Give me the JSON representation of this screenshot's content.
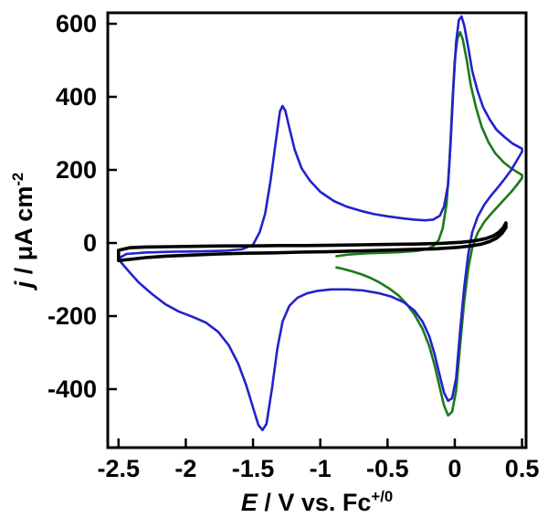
{
  "figure": {
    "background": "#ffffff",
    "xlabel": {
      "var": "E",
      "rest": " / V vs. Fc",
      "sup": "+/0"
    },
    "ylabel": {
      "var": "j",
      "rest": " / μA cm",
      "sup": "-2"
    }
  },
  "chart_data": {
    "type": "line",
    "title": "",
    "subtitle": "",
    "xlabel": "E / V vs. Fc+/0",
    "ylabel": "j / μA cm-2",
    "xlim": [
      -2.58,
      0.53
    ],
    "ylim": [
      -560,
      630
    ],
    "grid": false,
    "legend": "none",
    "frame_color": "#000000",
    "xticks": {
      "values": [
        -2.5,
        -2.0,
        -1.5,
        -1.0,
        -0.5,
        0.0,
        0.5
      ],
      "labels": [
        "-2.5",
        "-2",
        "-1.5",
        "-1",
        "-0.5",
        "0",
        "0.5"
      ]
    },
    "yticks": {
      "values": [
        -400,
        -200,
        0,
        200,
        400,
        600
      ],
      "labels": [
        "-400",
        "-200",
        "0",
        "200",
        "400",
        "600"
      ]
    },
    "series": [
      {
        "name": "green",
        "color": "#1a7a1a",
        "width": 2.6,
        "points": [
          [
            -0.88,
            -36
          ],
          [
            -0.8,
            -32
          ],
          [
            -0.72,
            -30
          ],
          [
            -0.64,
            -28
          ],
          [
            -0.56,
            -27
          ],
          [
            -0.48,
            -26
          ],
          [
            -0.4,
            -25
          ],
          [
            -0.33,
            -23
          ],
          [
            -0.27,
            -21
          ],
          [
            -0.21,
            -17
          ],
          [
            -0.16,
            -9
          ],
          [
            -0.12,
            8
          ],
          [
            -0.09,
            40
          ],
          [
            -0.06,
            110
          ],
          [
            -0.04,
            220
          ],
          [
            -0.02,
            370
          ],
          [
            0.0,
            500
          ],
          [
            0.02,
            560
          ],
          [
            0.04,
            577
          ],
          [
            0.06,
            556
          ],
          [
            0.09,
            498
          ],
          [
            0.12,
            430
          ],
          [
            0.16,
            368
          ],
          [
            0.2,
            318
          ],
          [
            0.25,
            276
          ],
          [
            0.3,
            246
          ],
          [
            0.36,
            222
          ],
          [
            0.42,
            204
          ],
          [
            0.5,
            186
          ],
          [
            0.5,
            178
          ],
          [
            0.46,
            158
          ],
          [
            0.42,
            140
          ],
          [
            0.37,
            120
          ],
          [
            0.32,
            100
          ],
          [
            0.27,
            80
          ],
          [
            0.22,
            58
          ],
          [
            0.17,
            28
          ],
          [
            0.13,
            -12
          ],
          [
            0.1,
            -70
          ],
          [
            0.07,
            -160
          ],
          [
            0.04,
            -280
          ],
          [
            0.01,
            -405
          ],
          [
            -0.02,
            -462
          ],
          [
            -0.05,
            -472
          ],
          [
            -0.08,
            -445
          ],
          [
            -0.11,
            -398
          ],
          [
            -0.15,
            -335
          ],
          [
            -0.19,
            -282
          ],
          [
            -0.24,
            -235
          ],
          [
            -0.3,
            -196
          ],
          [
            -0.36,
            -166
          ],
          [
            -0.42,
            -143
          ],
          [
            -0.49,
            -124
          ],
          [
            -0.56,
            -108
          ],
          [
            -0.63,
            -95
          ],
          [
            -0.7,
            -85
          ],
          [
            -0.77,
            -77
          ],
          [
            -0.83,
            -71
          ],
          [
            -0.88,
            -67
          ]
        ]
      },
      {
        "name": "blue",
        "color": "#2222cc",
        "width": 2.6,
        "points": [
          [
            -2.5,
            -42
          ],
          [
            -2.44,
            -30
          ],
          [
            -2.3,
            -26
          ],
          [
            -2.1,
            -24
          ],
          [
            -1.9,
            -23
          ],
          [
            -1.7,
            -21
          ],
          [
            -1.58,
            -17
          ],
          [
            -1.5,
            -5
          ],
          [
            -1.45,
            30
          ],
          [
            -1.41,
            80
          ],
          [
            -1.37,
            170
          ],
          [
            -1.33,
            280
          ],
          [
            -1.3,
            360
          ],
          [
            -1.28,
            375
          ],
          [
            -1.26,
            362
          ],
          [
            -1.23,
            315
          ],
          [
            -1.19,
            255
          ],
          [
            -1.14,
            205
          ],
          [
            -1.08,
            172
          ],
          [
            -1.0,
            140
          ],
          [
            -0.9,
            115
          ],
          [
            -0.8,
            99
          ],
          [
            -0.7,
            88
          ],
          [
            -0.6,
            79
          ],
          [
            -0.5,
            73
          ],
          [
            -0.4,
            68
          ],
          [
            -0.3,
            64
          ],
          [
            -0.22,
            62
          ],
          [
            -0.16,
            64
          ],
          [
            -0.11,
            75
          ],
          [
            -0.08,
            100
          ],
          [
            -0.05,
            160
          ],
          [
            -0.03,
            280
          ],
          [
            -0.01,
            430
          ],
          [
            0.01,
            550
          ],
          [
            0.03,
            610
          ],
          [
            0.05,
            620
          ],
          [
            0.07,
            595
          ],
          [
            0.1,
            535
          ],
          [
            0.13,
            470
          ],
          [
            0.17,
            415
          ],
          [
            0.21,
            372
          ],
          [
            0.26,
            338
          ],
          [
            0.31,
            310
          ],
          [
            0.37,
            290
          ],
          [
            0.43,
            272
          ],
          [
            0.5,
            258
          ],
          [
            0.5,
            250
          ],
          [
            0.46,
            225
          ],
          [
            0.42,
            200
          ],
          [
            0.37,
            175
          ],
          [
            0.32,
            152
          ],
          [
            0.27,
            130
          ],
          [
            0.22,
            105
          ],
          [
            0.17,
            72
          ],
          [
            0.13,
            30
          ],
          [
            0.1,
            -30
          ],
          [
            0.07,
            -120
          ],
          [
            0.04,
            -240
          ],
          [
            0.01,
            -370
          ],
          [
            -0.02,
            -425
          ],
          [
            -0.05,
            -432
          ],
          [
            -0.08,
            -410
          ],
          [
            -0.11,
            -365
          ],
          [
            -0.15,
            -305
          ],
          [
            -0.19,
            -255
          ],
          [
            -0.24,
            -215
          ],
          [
            -0.3,
            -185
          ],
          [
            -0.38,
            -162
          ],
          [
            -0.47,
            -147
          ],
          [
            -0.57,
            -137
          ],
          [
            -0.68,
            -130
          ],
          [
            -0.8,
            -127
          ],
          [
            -0.92,
            -127
          ],
          [
            -1.02,
            -131
          ],
          [
            -1.1,
            -138
          ],
          [
            -1.17,
            -150
          ],
          [
            -1.23,
            -172
          ],
          [
            -1.28,
            -215
          ],
          [
            -1.32,
            -290
          ],
          [
            -1.36,
            -400
          ],
          [
            -1.4,
            -495
          ],
          [
            -1.43,
            -512
          ],
          [
            -1.46,
            -498
          ],
          [
            -1.5,
            -450
          ],
          [
            -1.55,
            -390
          ],
          [
            -1.61,
            -330
          ],
          [
            -1.68,
            -280
          ],
          [
            -1.76,
            -243
          ],
          [
            -1.85,
            -218
          ],
          [
            -1.95,
            -202
          ],
          [
            -2.05,
            -188
          ],
          [
            -2.15,
            -168
          ],
          [
            -2.25,
            -140
          ],
          [
            -2.35,
            -108
          ],
          [
            -2.43,
            -75
          ],
          [
            -2.5,
            -45
          ]
        ]
      },
      {
        "name": "black",
        "color": "#000000",
        "width": 3.6,
        "points": [
          [
            -2.5,
            -20
          ],
          [
            -2.42,
            -13
          ],
          [
            -2.3,
            -11
          ],
          [
            -2.1,
            -10
          ],
          [
            -1.9,
            -9
          ],
          [
            -1.7,
            -8
          ],
          [
            -1.5,
            -8
          ],
          [
            -1.3,
            -7
          ],
          [
            -1.1,
            -7
          ],
          [
            -0.9,
            -6
          ],
          [
            -0.7,
            -5
          ],
          [
            -0.5,
            -4
          ],
          [
            -0.3,
            -3
          ],
          [
            -0.1,
            -1
          ],
          [
            0.05,
            2
          ],
          [
            0.15,
            6
          ],
          [
            0.23,
            12
          ],
          [
            0.29,
            20
          ],
          [
            0.33,
            30
          ],
          [
            0.36,
            42
          ],
          [
            0.38,
            55
          ],
          [
            0.38,
            42
          ],
          [
            0.35,
            26
          ],
          [
            0.31,
            13
          ],
          [
            0.26,
            4
          ],
          [
            0.2,
            -3
          ],
          [
            0.12,
            -8
          ],
          [
            0.02,
            -12
          ],
          [
            -0.15,
            -16
          ],
          [
            -0.35,
            -18
          ],
          [
            -0.55,
            -20
          ],
          [
            -0.75,
            -22
          ],
          [
            -0.95,
            -24
          ],
          [
            -1.15,
            -25
          ],
          [
            -1.35,
            -27
          ],
          [
            -1.55,
            -28
          ],
          [
            -1.75,
            -30
          ],
          [
            -1.95,
            -33
          ],
          [
            -2.15,
            -36
          ],
          [
            -2.3,
            -40
          ],
          [
            -2.42,
            -45
          ],
          [
            -2.5,
            -48
          ],
          [
            -2.5,
            -20
          ]
        ]
      }
    ]
  }
}
